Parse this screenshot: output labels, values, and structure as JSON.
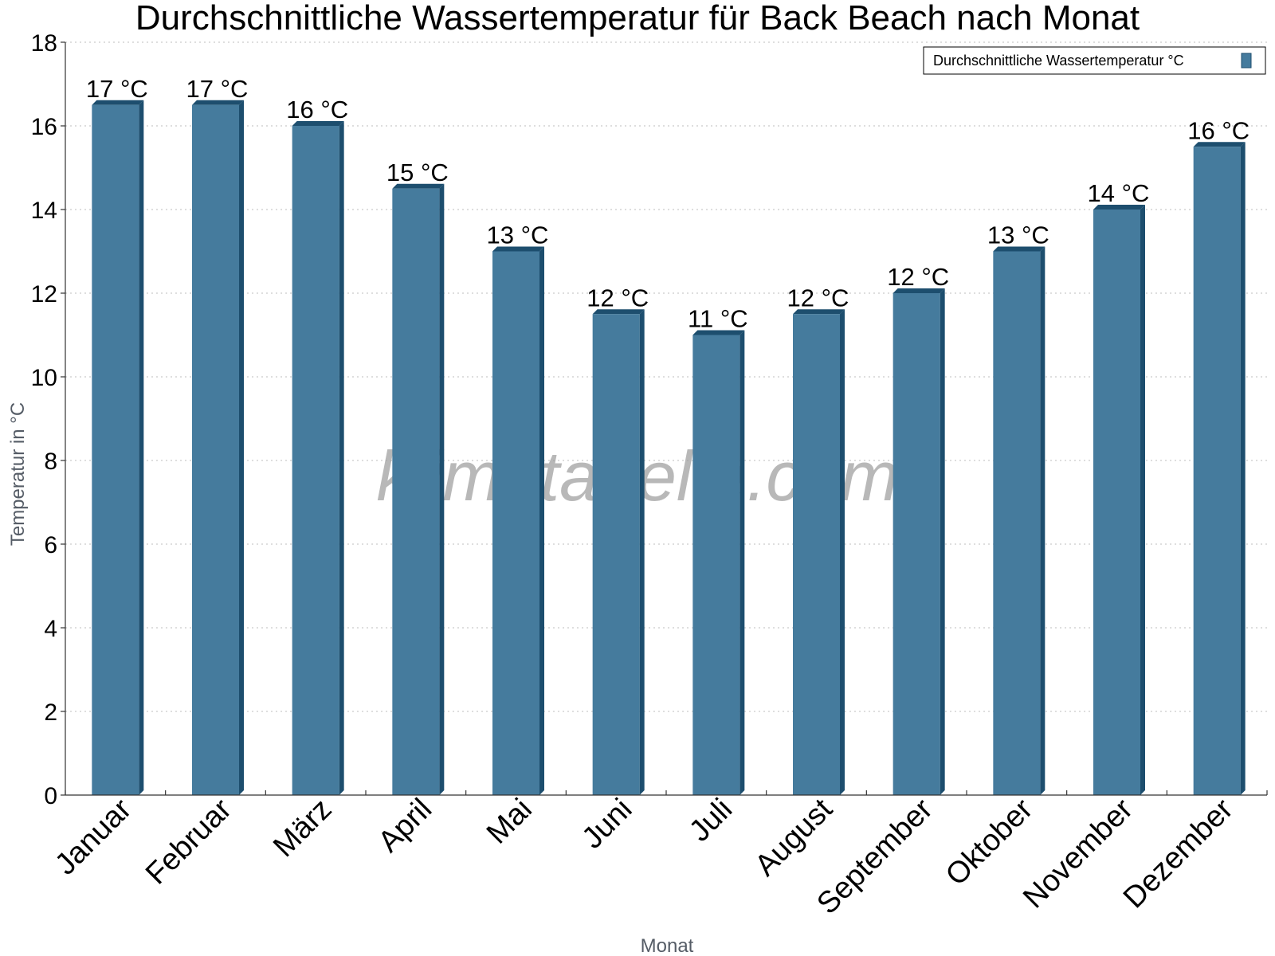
{
  "chart_data": {
    "type": "bar",
    "title": "Durchschnittliche Wassertemperatur für Back Beach nach Monat",
    "xlabel": "Monat",
    "ylabel": "Temperatur in °C",
    "categories": [
      "Januar",
      "Februar",
      "März",
      "April",
      "Mai",
      "Juni",
      "Juli",
      "August",
      "September",
      "Oktober",
      "November",
      "Dezember"
    ],
    "series": [
      {
        "name": "Durchschnittliche Wassertemperatur °C",
        "values": [
          16.5,
          16.5,
          16.0,
          14.5,
          13.0,
          11.5,
          11.0,
          11.5,
          12.0,
          13.0,
          14.0,
          15.5
        ],
        "labels": [
          "17 °C",
          "17 °C",
          "16 °C",
          "15 °C",
          "13 °C",
          "12 °C",
          "11 °C",
          "12 °C",
          "12 °C",
          "13 °C",
          "14 °C",
          "16 °C"
        ]
      }
    ],
    "ylim": [
      0,
      18
    ],
    "yticks": [
      0,
      2,
      4,
      6,
      8,
      10,
      12,
      14,
      16,
      18
    ],
    "grid": true,
    "legend_position": "top-right"
  },
  "colors": {
    "bar_front": "#457b9d",
    "bar_side": "#1d4e6e",
    "bar_top": "#1d4e6e"
  },
  "watermark": "klimatabelle.com"
}
